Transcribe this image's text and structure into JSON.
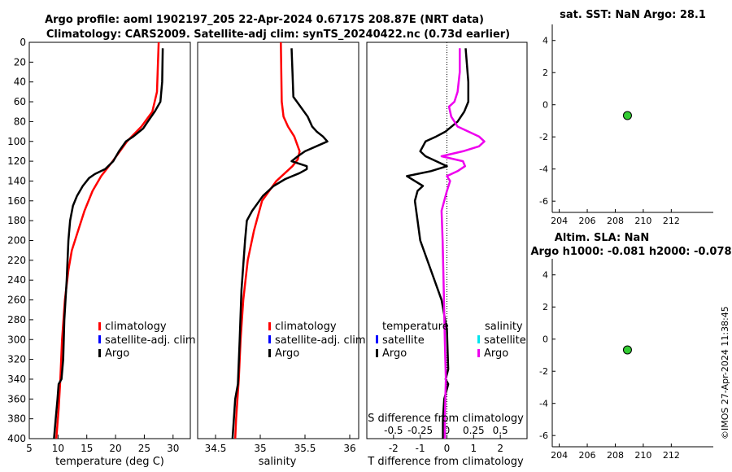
{
  "header": {
    "line1": "Argo profile: aoml 1902197_205 22-Apr-2024 0.6717S 208.87E (NRT data)",
    "line2": "Climatology: CARS2009. Satellite-adj clim: synTS_20240422.nc (0.73d earlier)"
  },
  "stamp": "©IMOS 27-Apr-2024 11:38:45",
  "colors": {
    "climatology": "#ff0000",
    "satellite": "#0000ff",
    "argo": "#000000",
    "salinity_diff": "#ee00ee",
    "satellite_s": "#00e5ee",
    "marker": "#33cc33"
  },
  "chart_data": [
    {
      "type": "line",
      "title": "",
      "xlabel": "temperature (deg C)",
      "ylabel": "",
      "xlim": [
        5,
        33
      ],
      "ylim": [
        400,
        0
      ],
      "xticks": [
        5,
        10,
        15,
        20,
        25,
        30
      ],
      "yticks": [
        0,
        20,
        40,
        60,
        80,
        100,
        120,
        140,
        160,
        180,
        200,
        220,
        240,
        260,
        280,
        300,
        320,
        340,
        360,
        380,
        400
      ],
      "legend": [
        "climatology",
        "satellite-adj. clim",
        "Argo"
      ],
      "series": [
        {
          "name": "climatology",
          "depth": [
            0,
            50,
            70,
            85,
            100,
            120,
            135,
            150,
            170,
            190,
            210,
            230,
            260,
            300,
            340,
            370,
            400
          ],
          "values": [
            27.5,
            27.2,
            26.4,
            24.5,
            22,
            19.5,
            17.5,
            16,
            14.6,
            13.5,
            12.4,
            11.8,
            11.2,
            10.7,
            10.4,
            10.1,
            9.7
          ]
        },
        {
          "name": "Argo",
          "depth": [
            6,
            40,
            60,
            70,
            80,
            87,
            95,
            100,
            110,
            120,
            128,
            133,
            137,
            145,
            155,
            165,
            180,
            200,
            240,
            280,
            320,
            340,
            345,
            360,
            380,
            400
          ],
          "values": [
            28.2,
            28.1,
            27.8,
            26.8,
            25.6,
            24.8,
            23.1,
            21.8,
            20.6,
            19.6,
            18.2,
            16.4,
            15.4,
            14.3,
            13.3,
            12.6,
            12.1,
            11.8,
            11.5,
            11.1,
            10.9,
            10.6,
            10.1,
            9.9,
            9.6,
            9.3
          ]
        }
      ]
    },
    {
      "type": "line",
      "xlabel": "salinity",
      "xlim": [
        34.3,
        36.1
      ],
      "ylim": [
        400,
        0
      ],
      "xticks": [
        34.5,
        35,
        35.5,
        36
      ],
      "xtick_labels": [
        "34.5",
        "35",
        "35.5",
        "36"
      ],
      "legend": [
        "climatology",
        "satellite-adj. clim",
        "Argo"
      ],
      "series": [
        {
          "name": "climatology",
          "depth": [
            0,
            60,
            75,
            85,
            95,
            110,
            118,
            125,
            140,
            160,
            190,
            220,
            260,
            300,
            340,
            380,
            400
          ],
          "values": [
            35.23,
            35.24,
            35.26,
            35.31,
            35.38,
            35.44,
            35.42,
            35.36,
            35.18,
            35.02,
            34.93,
            34.86,
            34.81,
            34.78,
            34.76,
            34.73,
            34.72
          ]
        },
        {
          "name": "Argo",
          "depth": [
            6,
            30,
            55,
            65,
            75,
            85,
            90,
            95,
            100,
            110,
            115,
            120,
            125,
            128,
            132,
            138,
            145,
            155,
            170,
            180,
            200,
            250,
            300,
            345,
            360,
            400
          ],
          "values": [
            35.35,
            35.36,
            35.37,
            35.45,
            35.53,
            35.58,
            35.63,
            35.7,
            35.75,
            35.5,
            35.42,
            35.35,
            35.52,
            35.52,
            35.44,
            35.28,
            35.15,
            35.03,
            34.91,
            34.85,
            34.83,
            34.79,
            34.77,
            34.75,
            34.72,
            34.69
          ]
        }
      ]
    },
    {
      "type": "line",
      "xlabel": "T difference from climatology",
      "top_label": "S difference from climatology",
      "xlim": [
        -3,
        3
      ],
      "ylim": [
        400,
        0
      ],
      "xticks": [
        -2,
        -1,
        0,
        1,
        2
      ],
      "xtick_labels": [
        "-2",
        "-1",
        "0",
        "1",
        "2"
      ],
      "top_ticks": [
        -0.5,
        -0.25,
        0,
        0.25,
        0.5
      ],
      "top_tick_labels": [
        "-0.5",
        "-0.25",
        "0",
        "0.25",
        "0.5"
      ],
      "legend_t_title": "temperature",
      "legend_s_title": "salinity",
      "legend_t": [
        "satellite",
        "Argo"
      ],
      "legend_s": [
        "satellite",
        "Argo"
      ],
      "series": [
        {
          "name": "T diff (Argo)",
          "depth": [
            6,
            40,
            60,
            70,
            80,
            90,
            95,
            100,
            105,
            110,
            115,
            120,
            125,
            130,
            135,
            140,
            145,
            150,
            160,
            180,
            200,
            230,
            260,
            290,
            330,
            340,
            345,
            360,
            380,
            400
          ],
          "values": [
            0.7,
            0.8,
            0.8,
            0.65,
            0.4,
            -0.05,
            -0.4,
            -0.8,
            -0.9,
            -1,
            -0.8,
            -0.4,
            0,
            -0.6,
            -1.5,
            -1.2,
            -0.9,
            -1.1,
            -1.2,
            -1.1,
            -1,
            -0.6,
            -0.2,
            0,
            0.05,
            -0.05,
            0.05,
            -0.1,
            -0.15,
            -0.15
          ]
        },
        {
          "name": "S diff (Argo)",
          "depth": [
            6,
            30,
            50,
            60,
            65,
            75,
            85,
            90,
            95,
            100,
            105,
            110,
            115,
            120,
            125,
            130,
            135,
            140,
            150,
            170,
            200,
            250,
            300,
            340,
            380,
            400
          ],
          "values": [
            0.12,
            0.12,
            0.1,
            0.07,
            0.02,
            0.04,
            0.1,
            0.2,
            0.3,
            0.35,
            0.3,
            0.15,
            -0.05,
            0.15,
            0.17,
            0.1,
            0,
            0.03,
            0,
            -0.05,
            -0.04,
            -0.03,
            -0.02,
            -0.01,
            -0.02,
            -0.02
          ]
        }
      ]
    },
    {
      "type": "scatter",
      "title": "sat. SST: NaN Argo: 28.1",
      "xlim": [
        203.5,
        215
      ],
      "ylim": [
        -6.7,
        5
      ],
      "xticks": [
        204,
        206,
        208,
        210,
        212
      ],
      "yticks": [
        -6,
        -4,
        -2,
        0,
        2,
        4
      ],
      "points": [
        {
          "x": 208.87,
          "y": -0.67
        }
      ]
    },
    {
      "type": "scatter",
      "title": "Altim. SLA: NaN",
      "subtitle": "Argo h1000: -0.081 h2000: -0.078",
      "xlim": [
        203.5,
        215
      ],
      "ylim": [
        -6.7,
        5
      ],
      "xticks": [
        204,
        206,
        208,
        210,
        212
      ],
      "yticks": [
        -6,
        -4,
        -2,
        0,
        2,
        4
      ],
      "points": [
        {
          "x": 208.87,
          "y": -0.67
        }
      ]
    }
  ]
}
